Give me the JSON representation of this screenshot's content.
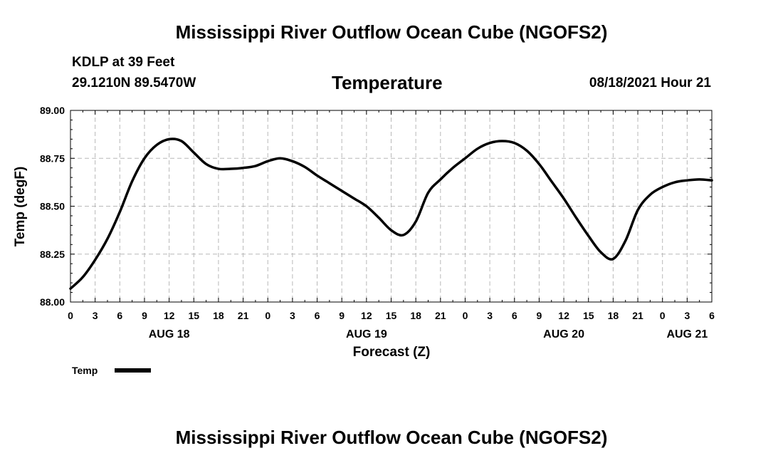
{
  "header": {
    "title": "Mississippi River Outflow Ocean Cube (NGOFS2)",
    "station": "KDLP at 39 Feet",
    "coords": "29.1210N  89.5470W",
    "chart_title": "Temperature",
    "datetime": "08/18/2021 Hour 21"
  },
  "footer": {
    "title": "Mississippi River Outflow Ocean Cube (NGOFS2)"
  },
  "chart_data": {
    "type": "line",
    "title": "Temperature",
    "xlabel": "Forecast (Z)",
    "ylabel": "Temp (degF)",
    "ylim": [
      88.0,
      89.0
    ],
    "xlim": [
      0,
      78
    ],
    "x_unit": "hours since 08/18 00Z",
    "y_ticks": [
      "88.00",
      "88.25",
      "88.50",
      "88.75",
      "89.00"
    ],
    "y_tick_values": [
      88.0,
      88.25,
      88.5,
      88.75,
      89.0
    ],
    "x_tick_hours": [
      0,
      3,
      6,
      9,
      12,
      15,
      18,
      21,
      24,
      27,
      30,
      33,
      36,
      39,
      42,
      45,
      48,
      51,
      54,
      57,
      60,
      63,
      66,
      69,
      72,
      75,
      78
    ],
    "x_tick_labels": [
      "0",
      "3",
      "6",
      "9",
      "12",
      "15",
      "18",
      "21",
      "0",
      "3",
      "6",
      "9",
      "12",
      "15",
      "18",
      "21",
      "0",
      "3",
      "6",
      "9",
      "12",
      "15",
      "18",
      "21",
      "0",
      "3",
      "6"
    ],
    "day_labels": [
      {
        "label": "AUG 18",
        "hour": 12
      },
      {
        "label": "AUG 19",
        "hour": 36
      },
      {
        "label": "AUG 20",
        "hour": 60
      },
      {
        "label": "AUG 21",
        "hour": 75
      }
    ],
    "grid": true,
    "legend": {
      "position": "bottom-left",
      "label": "Temp"
    },
    "series": [
      {
        "name": "Temp",
        "color": "#000000",
        "x": [
          0,
          1.5,
          3,
          4.5,
          6,
          7.5,
          9,
          10.5,
          12,
          13.5,
          15,
          16.5,
          18,
          19.5,
          21,
          22.5,
          24,
          25.5,
          27,
          28.5,
          30,
          31.5,
          33,
          34.5,
          36,
          37.5,
          39,
          40.5,
          42,
          43.5,
          45,
          46.5,
          48,
          49.5,
          51,
          52.5,
          54,
          55.5,
          57,
          58.5,
          60,
          61.5,
          63,
          64.5,
          66,
          67.5,
          69,
          70.5,
          72,
          73.5,
          75,
          76.5,
          78
        ],
        "values": [
          88.07,
          88.13,
          88.22,
          88.33,
          88.47,
          88.63,
          88.75,
          88.82,
          88.85,
          88.84,
          88.78,
          88.72,
          88.695,
          88.695,
          88.7,
          88.71,
          88.735,
          88.75,
          88.735,
          88.705,
          88.66,
          88.62,
          88.58,
          88.54,
          88.5,
          88.44,
          88.375,
          88.35,
          88.42,
          88.57,
          88.64,
          88.7,
          88.75,
          88.8,
          88.83,
          88.84,
          88.83,
          88.79,
          88.72,
          88.63,
          88.54,
          88.44,
          88.345,
          88.26,
          88.225,
          88.32,
          88.48,
          88.56,
          88.6,
          88.625,
          88.635,
          88.64,
          88.635
        ]
      }
    ]
  }
}
